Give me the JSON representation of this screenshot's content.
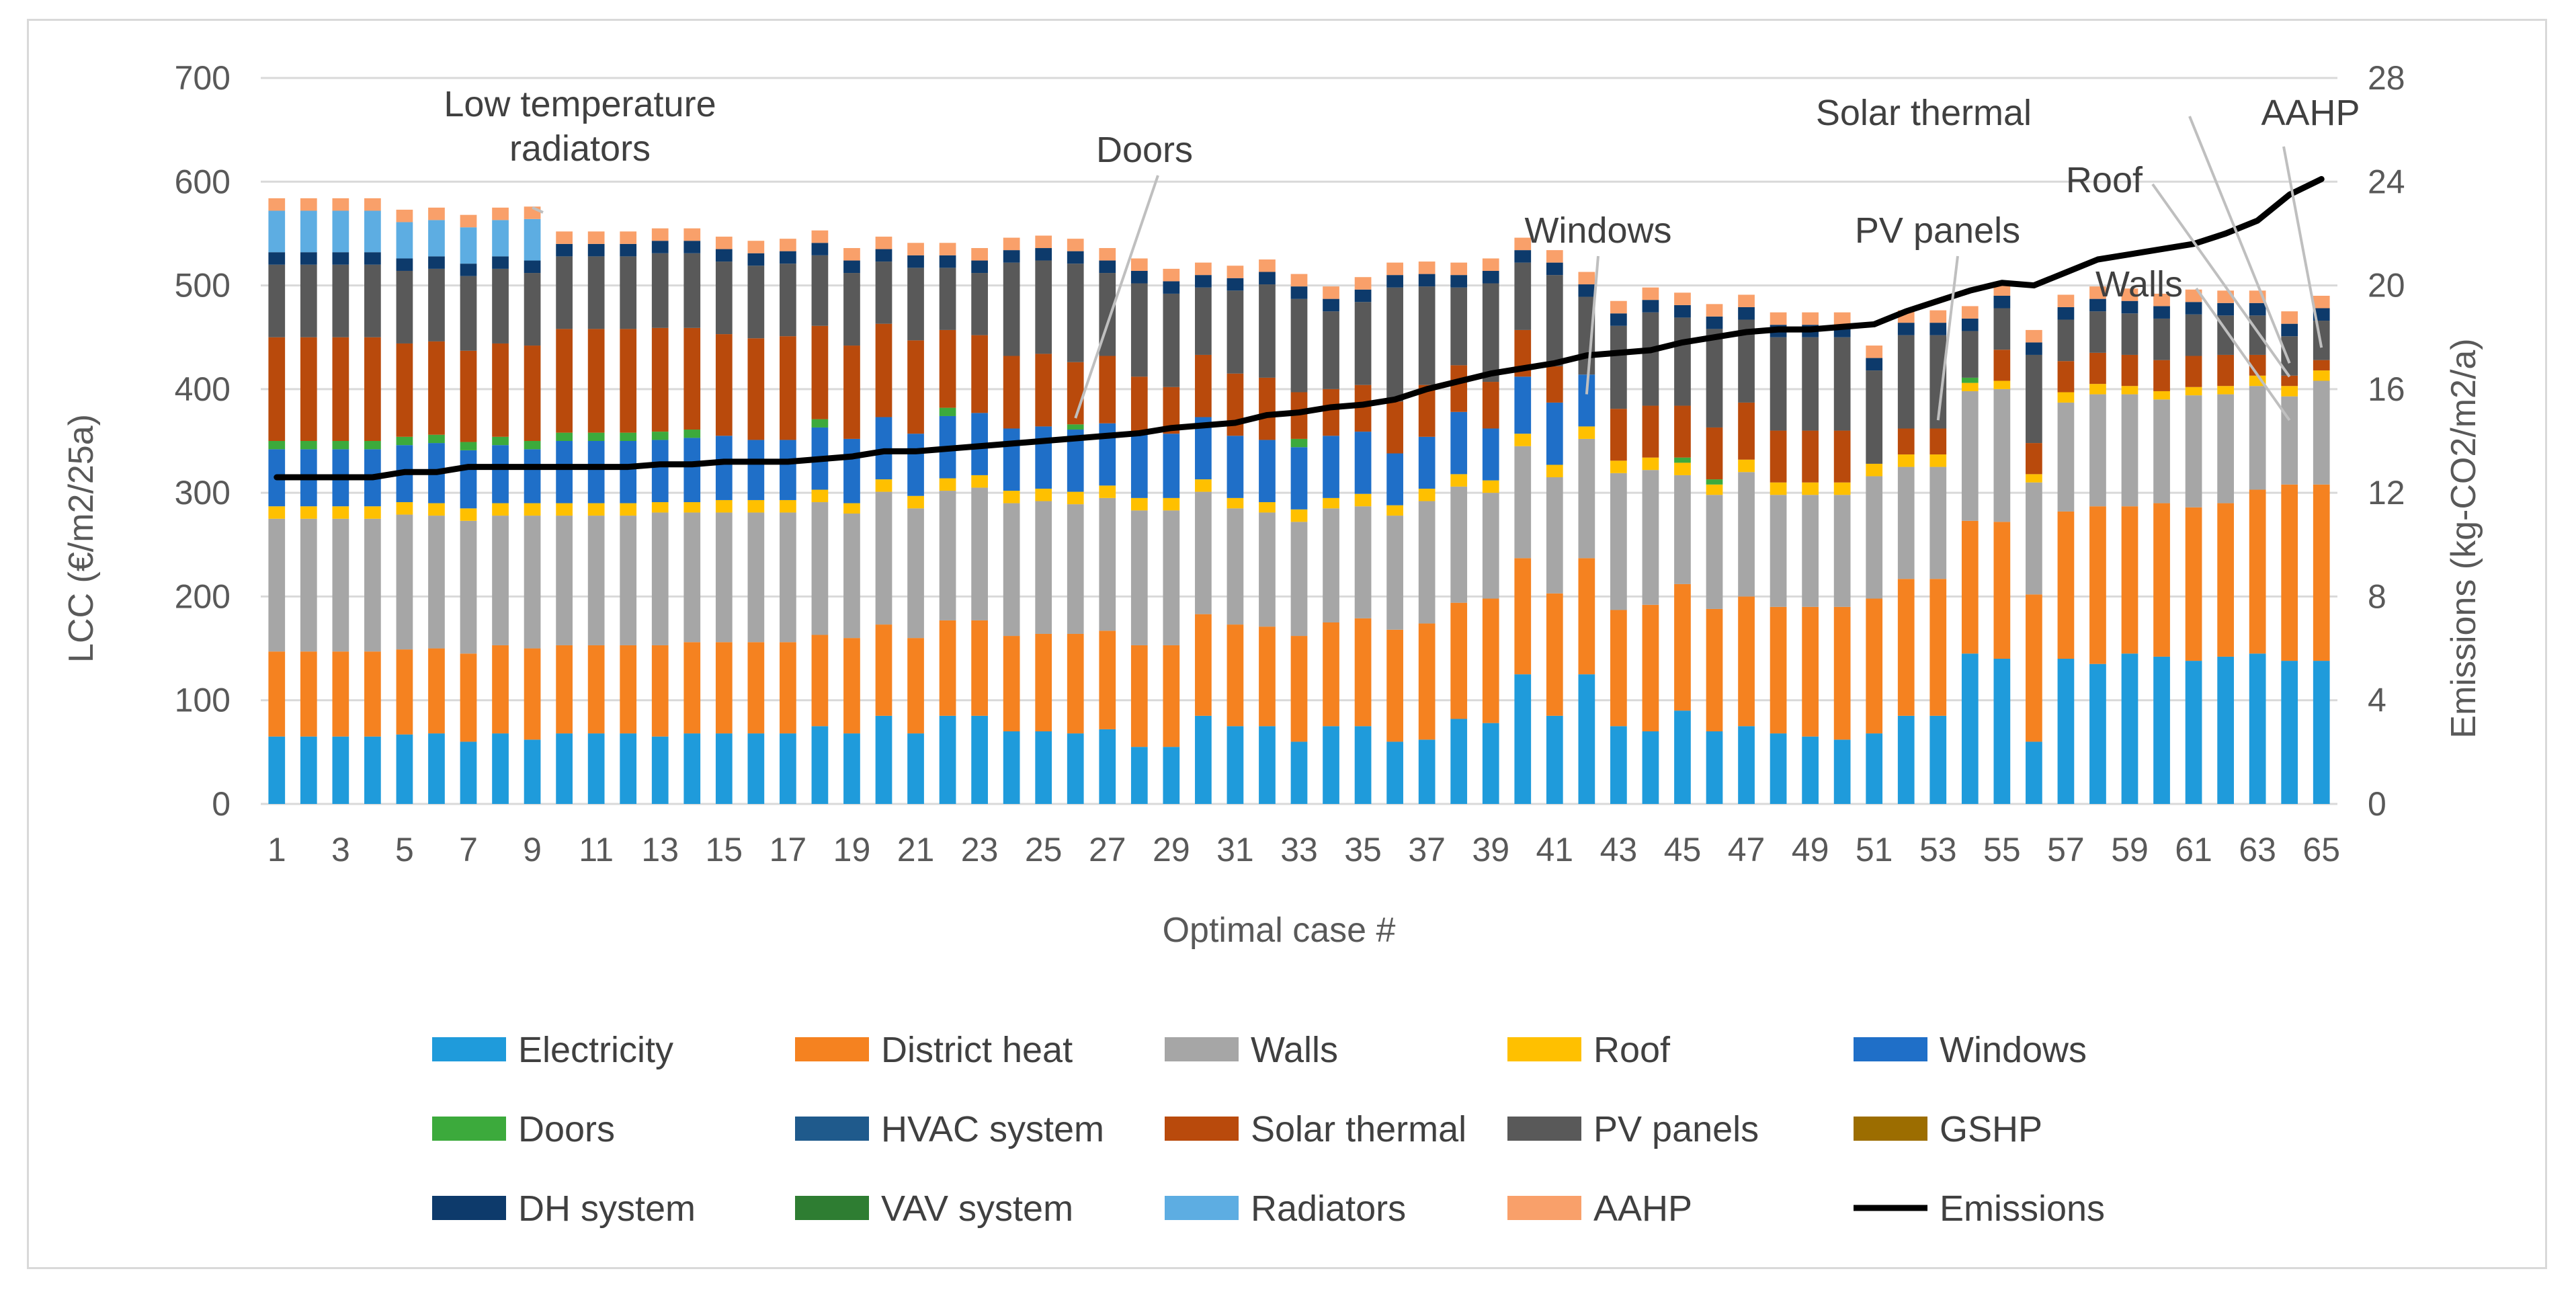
{
  "chart_data": {
    "type": "bar",
    "stacked": true,
    "xlabel": "Optimal case #",
    "ylabel": "LCC (€/m2/25a)",
    "y2label": "Emissions (kg-CO2/m2/a)",
    "ylim": [
      0,
      700
    ],
    "y2lim": [
      0,
      28
    ],
    "y_ticks": [
      "0",
      "100",
      "200",
      "300",
      "400",
      "500",
      "600",
      "700"
    ],
    "y2_ticks": [
      "0",
      "4",
      "8",
      "12",
      "16",
      "20",
      "24",
      "28"
    ],
    "x_tick_labels": [
      "1",
      "3",
      "5",
      "7",
      "9",
      "11",
      "13",
      "15",
      "17",
      "19",
      "21",
      "23",
      "25",
      "27",
      "29",
      "31",
      "33",
      "35",
      "37",
      "39",
      "41",
      "43",
      "45",
      "47",
      "49",
      "51",
      "53",
      "55",
      "57",
      "59",
      "61",
      "63",
      "65"
    ],
    "cases": 65,
    "colors": {
      "Electricity": "#1f9bdb",
      "District heat": "#f58220",
      "Walls": "#a6a6a6",
      "Roof": "#ffc000",
      "Windows": "#1f6fc8",
      "Doors": "#3caa3c",
      "HVAC system": "#1f5a8c",
      "Solar thermal": "#b94a0c",
      "PV panels": "#595959",
      "GSHP": "#9c6d00",
      "DH system": "#0d3a6b",
      "VAV system": "#2e7d32",
      "Radiators": "#5dade2",
      "AAHP": "#f9a06a",
      "Emissions": "#000000"
    },
    "legend": [
      "Electricity",
      "District heat",
      "Walls",
      "Roof",
      "Windows",
      "Doors",
      "HVAC system",
      "Solar thermal",
      "PV panels",
      "GSHP",
      "DH system",
      "VAV system",
      "Radiators",
      "AAHP",
      "Emissions"
    ],
    "series": [
      {
        "name": "Electricity",
        "values": [
          65,
          65,
          65,
          65,
          67,
          68,
          60,
          68,
          62,
          68,
          68,
          68,
          65,
          68,
          68,
          68,
          68,
          75,
          68,
          85,
          68,
          85,
          85,
          70,
          70,
          68,
          72,
          55,
          55,
          85,
          75,
          75,
          60,
          75,
          75,
          60,
          62,
          82,
          78,
          125,
          85,
          125,
          75,
          70,
          90,
          70,
          75,
          68,
          65,
          62,
          68,
          85,
          85,
          145,
          140,
          60,
          140,
          135,
          145,
          142,
          138,
          142,
          145,
          138,
          138
        ]
      },
      {
        "name": "District heat",
        "values": [
          82,
          82,
          82,
          82,
          82,
          82,
          85,
          85,
          88,
          85,
          85,
          85,
          88,
          88,
          88,
          88,
          88,
          88,
          92,
          88,
          92,
          92,
          92,
          92,
          94,
          96,
          95,
          98,
          98,
          98,
          98,
          96,
          102,
          100,
          104,
          108,
          112,
          112,
          120,
          112,
          118,
          112,
          112,
          122,
          122,
          118,
          125,
          122,
          125,
          128,
          130,
          132,
          132,
          128,
          132,
          142,
          142,
          152,
          142,
          148,
          148,
          148,
          158,
          170,
          170
        ]
      },
      {
        "name": "Walls",
        "values": [
          128,
          128,
          128,
          128,
          130,
          128,
          128,
          125,
          128,
          125,
          125,
          125,
          128,
          125,
          125,
          125,
          125,
          128,
          120,
          128,
          125,
          125,
          128,
          128,
          128,
          125,
          128,
          130,
          130,
          118,
          112,
          110,
          110,
          110,
          108,
          110,
          118,
          112,
          102,
          108,
          112,
          115,
          132,
          130,
          105,
          110,
          120,
          108,
          108,
          108,
          118,
          108,
          108,
          125,
          128,
          108,
          105,
          108,
          108,
          100,
          108,
          105,
          100,
          85,
          100
        ]
      },
      {
        "name": "Roof",
        "values": [
          12,
          12,
          12,
          12,
          12,
          12,
          12,
          12,
          12,
          12,
          12,
          12,
          10,
          10,
          12,
          12,
          12,
          12,
          10,
          12,
          12,
          12,
          12,
          12,
          12,
          12,
          12,
          12,
          12,
          12,
          10,
          10,
          12,
          10,
          12,
          10,
          12,
          12,
          12,
          12,
          12,
          12,
          12,
          12,
          12,
          10,
          12,
          12,
          12,
          12,
          12,
          12,
          12,
          8,
          8,
          8,
          10,
          10,
          8,
          8,
          8,
          8,
          10,
          10,
          10
        ]
      },
      {
        "name": "Windows",
        "values": [
          55,
          55,
          55,
          55,
          55,
          58,
          56,
          56,
          52,
          60,
          60,
          60,
          60,
          62,
          62,
          58,
          58,
          60,
          62,
          60,
          60,
          60,
          60,
          60,
          60,
          60,
          60,
          62,
          62,
          60,
          60,
          60,
          60,
          60,
          60,
          50,
          50,
          60,
          50,
          55,
          60,
          50,
          0,
          0,
          0,
          0,
          0,
          0,
          0,
          0,
          0,
          0,
          0,
          0,
          0,
          0,
          0,
          0,
          0,
          0,
          0,
          0,
          0,
          0,
          0
        ]
      },
      {
        "name": "Doors",
        "values": [
          8,
          8,
          8,
          8,
          8,
          8,
          8,
          8,
          8,
          8,
          8,
          8,
          8,
          8,
          0,
          0,
          0,
          8,
          0,
          0,
          0,
          8,
          0,
          0,
          0,
          5,
          0,
          0,
          0,
          0,
          0,
          0,
          8,
          0,
          0,
          0,
          0,
          0,
          0,
          0,
          0,
          0,
          0,
          0,
          5,
          5,
          0,
          0,
          0,
          0,
          0,
          0,
          0,
          5,
          0,
          0,
          0,
          0,
          0,
          0,
          0,
          0,
          0,
          0,
          0
        ]
      },
      {
        "name": "Solar thermal",
        "values": [
          100,
          100,
          100,
          100,
          90,
          90,
          88,
          90,
          92,
          100,
          100,
          100,
          100,
          98,
          98,
          98,
          100,
          90,
          90,
          90,
          90,
          75,
          75,
          70,
          70,
          60,
          65,
          55,
          45,
          60,
          60,
          60,
          45,
          45,
          45,
          50,
          50,
          45,
          45,
          45,
          35,
          0,
          50,
          50,
          50,
          50,
          55,
          50,
          50,
          50,
          0,
          25,
          25,
          0,
          30,
          30,
          30,
          30,
          30,
          30,
          30,
          30,
          20,
          10,
          10
        ]
      },
      {
        "name": "PV panels",
        "values": [
          70,
          70,
          70,
          70,
          70,
          70,
          72,
          72,
          70,
          70,
          70,
          70,
          72,
          72,
          70,
          70,
          70,
          68,
          70,
          60,
          70,
          60,
          60,
          90,
          90,
          95,
          80,
          90,
          90,
          65,
          80,
          90,
          90,
          75,
          80,
          110,
          95,
          75,
          95,
          65,
          88,
          75,
          80,
          90,
          85,
          95,
          80,
          90,
          90,
          90,
          90,
          90,
          90,
          45,
          40,
          85,
          40,
          40,
          40,
          40,
          40,
          38,
          38,
          38,
          38
        ]
      },
      {
        "name": "HVAC system",
        "values": [
          0,
          0,
          0,
          0,
          0,
          0,
          0,
          0,
          0,
          0,
          0,
          0,
          0,
          0,
          0,
          0,
          0,
          0,
          0,
          0,
          0,
          0,
          0,
          0,
          0,
          0,
          0,
          0,
          0,
          0,
          0,
          0,
          0,
          0,
          0,
          0,
          0,
          0,
          0,
          0,
          0,
          0,
          0,
          0,
          0,
          0,
          0,
          0,
          0,
          0,
          0,
          0,
          0,
          0,
          0,
          0,
          0,
          0,
          0,
          0,
          0,
          0,
          0,
          0,
          0
        ]
      },
      {
        "name": "DH system",
        "values": [
          12,
          12,
          12,
          12,
          12,
          12,
          12,
          12,
          12,
          12,
          12,
          12,
          12,
          12,
          12,
          12,
          12,
          12,
          12,
          12,
          12,
          12,
          12,
          12,
          12,
          12,
          12,
          12,
          12,
          12,
          12,
          12,
          12,
          12,
          12,
          12,
          12,
          12,
          12,
          12,
          12,
          12,
          12,
          12,
          12,
          12,
          12,
          12,
          12,
          12,
          12,
          12,
          12,
          12,
          12,
          12,
          12,
          12,
          12,
          12,
          12,
          12,
          12,
          12,
          12
        ]
      },
      {
        "name": "Radiators",
        "values": [
          40,
          40,
          40,
          40,
          35,
          35,
          35,
          35,
          40,
          0,
          0,
          0,
          0,
          0,
          0,
          0,
          0,
          0,
          0,
          0,
          0,
          0,
          0,
          0,
          0,
          0,
          0,
          0,
          0,
          0,
          0,
          0,
          0,
          0,
          0,
          0,
          0,
          0,
          0,
          0,
          0,
          0,
          0,
          0,
          0,
          0,
          0,
          0,
          0,
          0,
          0,
          0,
          0,
          0,
          0,
          0,
          0,
          0,
          0,
          0,
          0,
          0,
          0,
          0,
          0
        ]
      },
      {
        "name": "AAHP",
        "values": [
          12,
          12,
          12,
          12,
          12,
          12,
          12,
          12,
          12,
          12,
          12,
          12,
          12,
          12,
          12,
          12,
          12,
          12,
          12,
          12,
          12,
          12,
          12,
          12,
          12,
          12,
          12,
          12,
          12,
          12,
          12,
          12,
          12,
          12,
          12,
          12,
          12,
          12,
          12,
          12,
          12,
          12,
          12,
          12,
          12,
          12,
          12,
          12,
          12,
          12,
          12,
          12,
          12,
          12,
          12,
          12,
          12,
          12,
          12,
          12,
          12,
          12,
          12,
          12,
          12
        ]
      }
    ],
    "emissions": [
      12.6,
      12.6,
      12.6,
      12.6,
      12.8,
      12.8,
      13.0,
      13.0,
      13.0,
      13.0,
      13.0,
      13.0,
      13.1,
      13.1,
      13.2,
      13.2,
      13.2,
      13.3,
      13.4,
      13.6,
      13.6,
      13.7,
      13.8,
      13.9,
      14.0,
      14.1,
      14.2,
      14.3,
      14.5,
      14.6,
      14.7,
      15.0,
      15.1,
      15.3,
      15.4,
      15.6,
      16.0,
      16.3,
      16.6,
      16.8,
      17.0,
      17.3,
      17.4,
      17.5,
      17.8,
      18.0,
      18.2,
      18.3,
      18.3,
      18.4,
      18.5,
      19.0,
      19.4,
      19.8,
      20.1,
      20.0,
      20.5,
      21.0,
      21.2,
      21.4,
      21.6,
      22.0,
      22.5,
      23.5,
      24.1
    ],
    "annotations": [
      {
        "lines": [
          "Low temperature",
          "radiators"
        ],
        "case": 9,
        "value": 575
      },
      {
        "lines": [
          "Doors"
        ],
        "case": 26,
        "value": 372
      },
      {
        "lines": [
          "Windows"
        ],
        "case": 42,
        "value": 395
      },
      {
        "lines": [
          "PV panels"
        ],
        "case": 53,
        "value": 370
      },
      {
        "lines": [
          "Solar thermal"
        ],
        "case": 64,
        "value": 425
      },
      {
        "lines": [
          "AAHP"
        ],
        "case": 65,
        "value": 440
      },
      {
        "lines": [
          "Roof"
        ],
        "case": 64,
        "value": 412
      },
      {
        "lines": [
          "Walls"
        ],
        "case": 64,
        "value": 370
      }
    ]
  }
}
